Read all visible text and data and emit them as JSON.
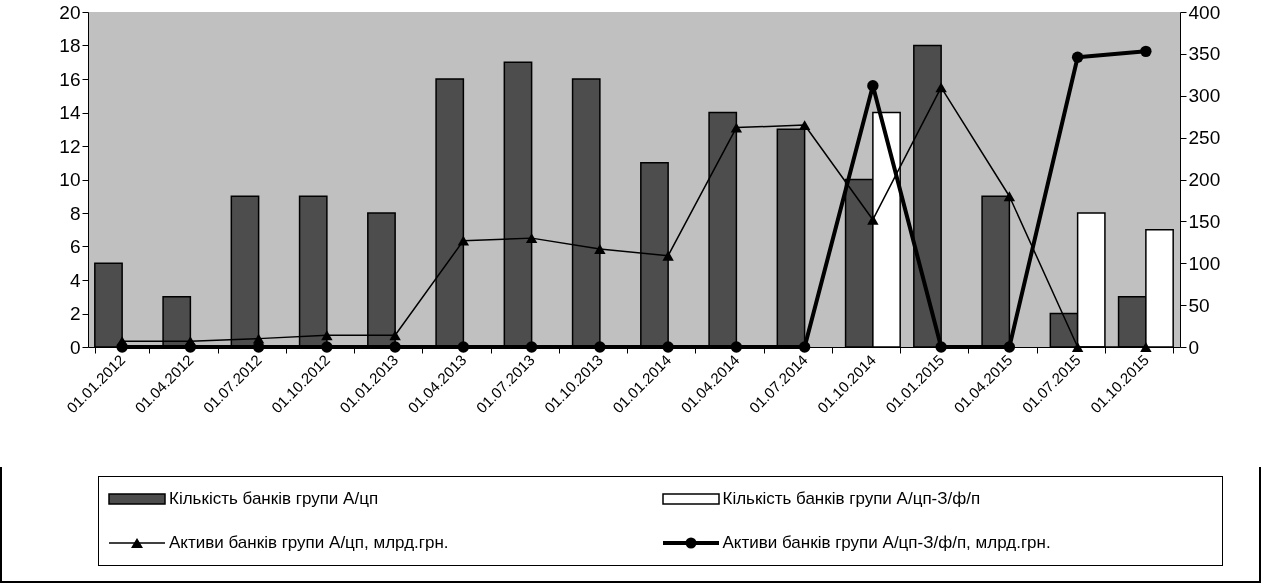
{
  "chart_data": {
    "type": "bar",
    "categories": [
      "01.01.2012",
      "01.04.2012",
      "01.07.2012",
      "01.10.2012",
      "01.01.2013",
      "01.04.2013",
      "01.07.2013",
      "01.10.2013",
      "01.01.2014",
      "01.04.2014",
      "01.07.2014",
      "01.10.2014",
      "01.01.2015",
      "01.04.2015",
      "01.07.2015",
      "01.10.2015"
    ],
    "series": [
      {
        "name": "Кількість банків групи А/цп",
        "color": "#4d4d4d",
        "values": [
          5,
          3,
          9,
          9,
          8,
          16,
          17,
          16,
          11,
          14,
          13,
          10,
          18,
          9,
          2,
          3
        ]
      },
      {
        "name": "Кількість банків групи А/цп-З/ф/п",
        "color": "#ffffff",
        "values": [
          null,
          null,
          null,
          null,
          null,
          null,
          null,
          null,
          null,
          null,
          null,
          14,
          null,
          null,
          8,
          7
        ]
      },
      {
        "name": "Активи банків групи А/цп, млрд.грн.",
        "type": "line",
        "axis": "y2",
        "color": "#000000",
        "marker": "triangle",
        "values": [
          7,
          7,
          10,
          14,
          14,
          127,
          130,
          117,
          109,
          262,
          265,
          152,
          310,
          180,
          0,
          0
        ]
      },
      {
        "name": "Активи банків групи А/цп-З/ф/п, млрд.грн.",
        "type": "line",
        "axis": "y2",
        "color": "#000000",
        "marker": "circle",
        "values": [
          0,
          0,
          0,
          0,
          0,
          0,
          0,
          0,
          0,
          0,
          0,
          312,
          0,
          0,
          346,
          353
        ]
      }
    ],
    "ylim": [
      0,
      20
    ],
    "yticks": [
      0,
      2,
      4,
      6,
      8,
      10,
      12,
      14,
      16,
      18,
      20
    ],
    "y2lim": [
      0,
      400
    ],
    "y2ticks": [
      0,
      50,
      100,
      150,
      200,
      250,
      300,
      350,
      400
    ],
    "grid": false,
    "legend": "bottom"
  }
}
